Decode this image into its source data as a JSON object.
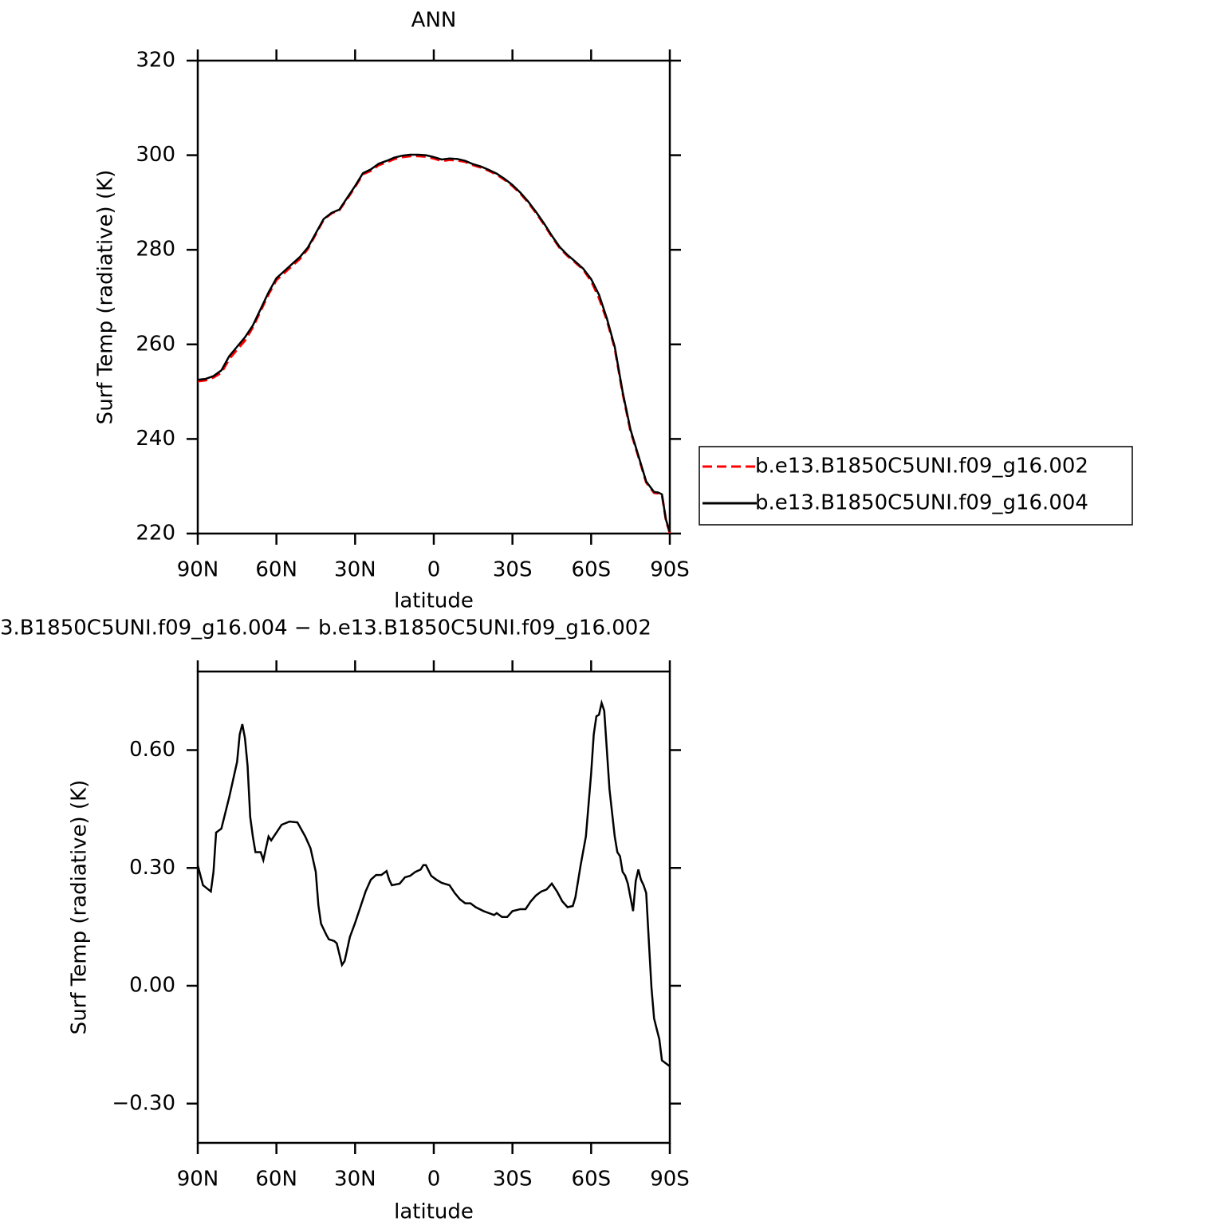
{
  "chart_data": [
    {
      "type": "line",
      "title": "ANN",
      "xlabel": "latitude",
      "ylabel": "Surf Temp (radiative) (K)",
      "xlim": [
        90,
        -90
      ],
      "xticks": [
        {
          "value": 90,
          "label": "90N"
        },
        {
          "value": 60,
          "label": "60N"
        },
        {
          "value": 30,
          "label": "30N"
        },
        0,
        {
          "value": -30,
          "label": "30S"
        },
        {
          "value": -60,
          "label": "60S"
        },
        {
          "value": -90,
          "label": "90S"
        }
      ],
      "ylim": [
        220,
        320
      ],
      "yticks": [
        220,
        240,
        260,
        280,
        300,
        320
      ],
      "legend": "right",
      "x": [
        90,
        87,
        84,
        81,
        78,
        75,
        72,
        69,
        66,
        63,
        60,
        57,
        54,
        51,
        48,
        45,
        42,
        39,
        36,
        33,
        30,
        27,
        24,
        21,
        18,
        15,
        12,
        9,
        6,
        3,
        0,
        -3,
        -6,
        -9,
        -12,
        -15,
        -18,
        -21,
        -24,
        -27,
        -30,
        -33,
        -36,
        -39,
        -42,
        -45,
        -48,
        -51,
        -54,
        -57,
        -60,
        -63,
        -66,
        -69,
        -72,
        -75,
        -78,
        -81,
        -84,
        -85.5,
        -87,
        -88.5,
        -90
      ],
      "series": [
        {
          "name": "b.e13.B1850C5UNI.f09_g16.002",
          "color": "#ff0000",
          "dash": true,
          "values": [
            252.2,
            252.4,
            253.0,
            254.0,
            256.9,
            258.9,
            260.8,
            263.6,
            267.1,
            270.6,
            273.6,
            275.1,
            276.6,
            278.1,
            280.2,
            283.3,
            286.4,
            287.7,
            288.4,
            290.8,
            293.3,
            296.0,
            296.7,
            297.9,
            298.5,
            299.2,
            299.6,
            299.8,
            299.8,
            299.7,
            299.3,
            298.8,
            299.0,
            298.9,
            298.6,
            297.9,
            297.4,
            296.7,
            295.9,
            294.8,
            293.5,
            291.9,
            290.0,
            287.8,
            285.4,
            282.8,
            280.4,
            278.7,
            277.3,
            275.8,
            273.4,
            269.8,
            265.1,
            259.2,
            249.7,
            241.7,
            236.3,
            230.8,
            228.6,
            228.5,
            228.2,
            222.9,
            220.1
          ]
        },
        {
          "name": "b.e13.B1850C5UNI.f09_g16.004",
          "color": "#000000",
          "dash": false,
          "values": [
            252.5,
            252.7,
            253.3,
            254.5,
            257.5,
            259.5,
            261.5,
            264,
            267.5,
            271,
            274,
            275.5,
            277,
            278.5,
            280.5,
            283.5,
            286.5,
            287.8,
            288.5,
            291,
            293.5,
            296.2,
            297,
            298.2,
            298.8,
            299.5,
            299.9,
            300.1,
            300.1,
            300,
            299.6,
            299.1,
            299.3,
            299.2,
            298.8,
            298.1,
            297.6,
            296.9,
            296.1,
            295,
            293.7,
            292.1,
            290.2,
            288,
            285.6,
            283,
            280.6,
            278.9,
            277.5,
            276,
            273.8,
            270.5,
            265.5,
            259.5,
            250,
            242,
            236.5,
            231,
            228.8,
            228.7,
            228.3,
            223,
            220.3
          ]
        }
      ]
    },
    {
      "type": "line",
      "title": "3.B1850C5UNI.f09_g16.004 − b.e13.B1850C5UNI.f09_g16.002",
      "xlabel": "latitude",
      "ylabel": "Surf Temp (radiative) (K)",
      "xlim": [
        90,
        -90
      ],
      "xticks": [
        {
          "value": 90,
          "label": "90N"
        },
        {
          "value": 60,
          "label": "60N"
        },
        {
          "value": 30,
          "label": "30N"
        },
        0,
        {
          "value": -30,
          "label": "30S"
        },
        {
          "value": -60,
          "label": "60S"
        },
        {
          "value": -90,
          "label": "90S"
        }
      ],
      "ylim": [
        -0.4,
        0.8
      ],
      "yticks": [
        {
          "value": -0.3,
          "label": "−0.30"
        },
        {
          "value": 0,
          "label": "0.00"
        },
        {
          "value": 0.3,
          "label": "0.30"
        },
        {
          "value": 0.6,
          "label": "0.60"
        }
      ],
      "x": [
        90,
        88,
        85,
        84,
        83,
        81,
        78,
        76,
        75,
        74,
        73,
        72,
        71,
        70,
        69,
        68,
        66,
        65,
        63,
        62,
        60,
        58,
        55,
        52,
        49,
        47,
        45,
        44,
        43,
        41,
        40,
        38,
        37,
        35,
        34,
        33,
        32,
        30,
        28,
        26,
        24,
        22,
        20,
        18,
        17,
        16,
        13,
        11,
        9,
        7,
        5,
        4,
        3,
        1,
        -1,
        -3,
        -6,
        -8,
        -10,
        -12,
        -14,
        -16,
        -19,
        -21,
        -23,
        -24,
        -26,
        -28,
        -30,
        -33,
        -35,
        -37,
        -39,
        -41,
        -43,
        -45,
        -47,
        -49,
        -51,
        -53,
        -54,
        -56,
        -58,
        -60,
        -61,
        -62,
        -63,
        -64,
        -65,
        -66,
        -67,
        -69,
        -70,
        -71,
        -72,
        -73,
        -74,
        -75,
        -76,
        -77,
        -78,
        -79,
        -80,
        -81,
        -82,
        -83,
        -84,
        -85,
        -86,
        -87,
        -90
      ],
      "series": [
        {
          "color": "#000000",
          "values": [
            0.307,
            0.256,
            0.24,
            0.29,
            0.39,
            0.4,
            0.48,
            0.54,
            0.57,
            0.64,
            0.666,
            0.63,
            0.56,
            0.43,
            0.38,
            0.34,
            0.34,
            0.32,
            0.38,
            0.37,
            0.39,
            0.41,
            0.418,
            0.416,
            0.38,
            0.35,
            0.29,
            0.205,
            0.158,
            0.13,
            0.118,
            0.114,
            0.108,
            0.053,
            0.063,
            0.093,
            0.124,
            0.16,
            0.2,
            0.24,
            0.27,
            0.282,
            0.282,
            0.292,
            0.27,
            0.256,
            0.26,
            0.276,
            0.28,
            0.29,
            0.296,
            0.307,
            0.307,
            0.28,
            0.27,
            0.262,
            0.256,
            0.236,
            0.22,
            0.21,
            0.21,
            0.2,
            0.19,
            0.185,
            0.18,
            0.185,
            0.175,
            0.175,
            0.19,
            0.195,
            0.195,
            0.215,
            0.23,
            0.24,
            0.245,
            0.26,
            0.24,
            0.215,
            0.2,
            0.203,
            0.225,
            0.307,
            0.38,
            0.54,
            0.64,
            0.686,
            0.69,
            0.72,
            0.7,
            0.6,
            0.5,
            0.38,
            0.34,
            0.33,
            0.29,
            0.28,
            0.26,
            0.225,
            0.19,
            0.266,
            0.296,
            0.27,
            0.256,
            0.236,
            0.114,
            -0.004,
            -0.083,
            -0.11,
            -0.136,
            -0.19,
            -0.205
          ]
        }
      ]
    }
  ]
}
